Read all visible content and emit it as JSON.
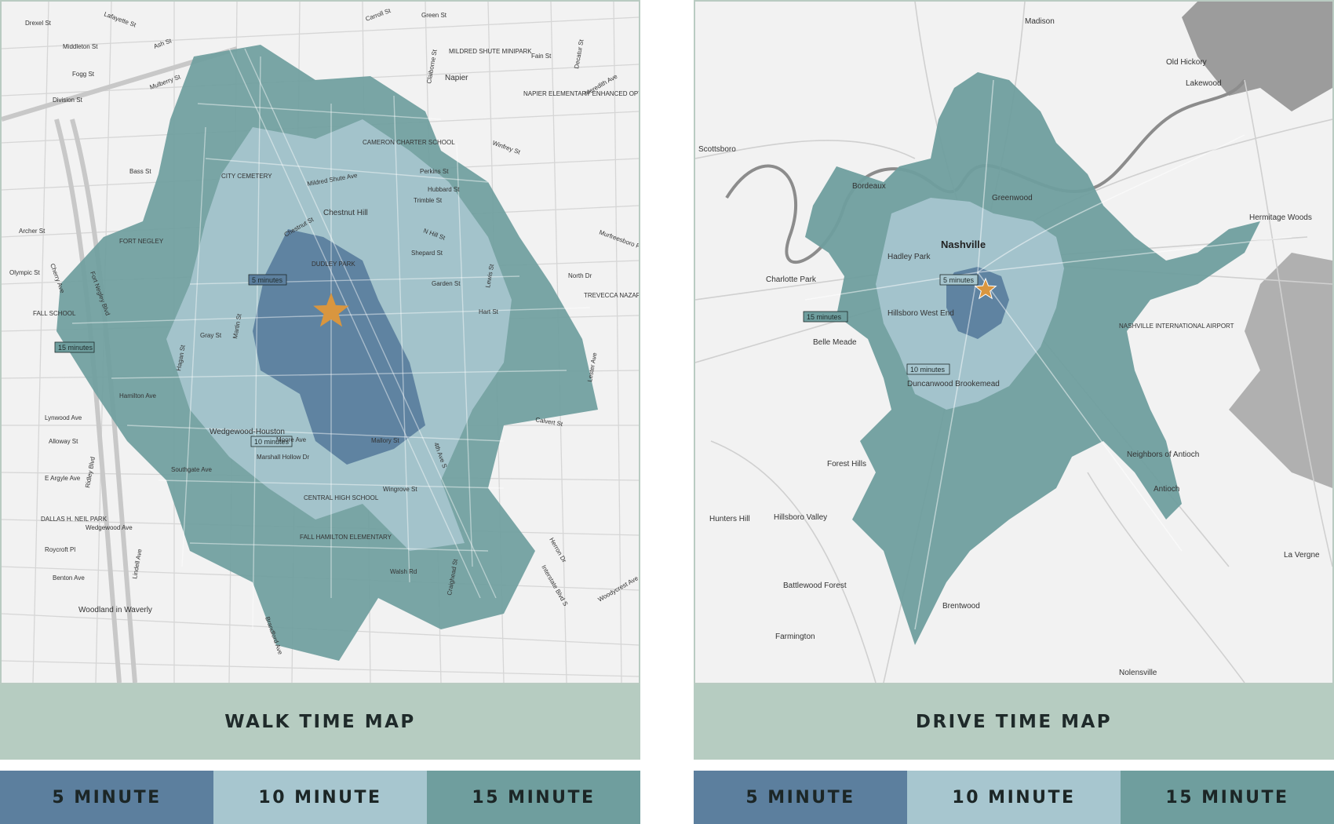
{
  "colors": {
    "zone_5": "#5c7f9e",
    "zone_10": "#a7c6cf",
    "zone_15": "#6f9e9e",
    "title_bar": "#b6ccc1",
    "marker": "#d9963f",
    "map_bg": "#f2f2f2"
  },
  "walk_map": {
    "title": "WALK TIME MAP",
    "legend": [
      "5 MINUTE",
      "10 MINUTE",
      "15 MINUTE"
    ],
    "box_labels": [
      "5 minutes",
      "10 minutes",
      "15 minutes"
    ],
    "labels": [
      "Lafayette St",
      "Drexel St",
      "Middleton St",
      "Ash St",
      "Fogg St",
      "Division St",
      "Mulberry St",
      "Carroll St",
      "Green St",
      "Fain St",
      "Napier",
      "MILDRED SHUTE MINIPARK",
      "NAPIER ELEMENTARY ENHANCED OPTIONS SCHL",
      "Meredith Ave",
      "Winfrey St",
      "CAMERON CHARTER SCHOOL",
      "Perkins St",
      "Hubbard St",
      "Trimble St",
      "CITY CEMETERY",
      "Mildred Shute Ave",
      "Chestnut Hill",
      "Bass St",
      "Archer St",
      "FORT NEGLEY",
      "N Hill St",
      "Shepard St",
      "Garden St",
      "North Dr",
      "TREVECCA NAZARENE UNIVERSITY",
      "Hart St",
      "DUDLEY PARK",
      "Chestnut St",
      "FALL SCHOOL",
      "Gray St",
      "Hamilton Ave",
      "Lynwood Ave",
      "Alloway St",
      "Wedgewood-Houston",
      "Moore Ave",
      "Marshall Hollow Dr",
      "Southgate Ave",
      "E Argyle Ave",
      "DALLAS H. NEIL PARK",
      "Wedgewood Ave",
      "Roycroft Pl",
      "Benton Ave",
      "Woodland in Waverly",
      "CENTRAL HIGH SCHOOL",
      "FALL HAMILTON ELEMENTARY",
      "Wingrove St",
      "Walsh Rd",
      "Mallory St",
      "Calvert St",
      "Woodycrest Ave",
      "Herron Dr",
      "Interstate Blvd S",
      "4th Ave S",
      "Craighead St",
      "Ridley Blvd",
      "Fort Negley Blvd",
      "Martin St",
      "Hagan St",
      "Lewis St",
      "Claiborne St",
      "Decatur St",
      "Lester Ave",
      "Murfreesboro Pike",
      "Cherry Ave",
      "Olympic St",
      "Lindell Ave",
      "Brandford Ave"
    ]
  },
  "drive_map": {
    "title": "DRIVE TIME MAP",
    "legend": [
      "5 MINUTE",
      "10 MINUTE",
      "15 MINUTE"
    ],
    "box_labels": [
      "5 minutes",
      "10 minutes",
      "15 minutes"
    ],
    "labels": [
      "Madison",
      "Old Hickory",
      "Lakewood",
      "Scottsboro",
      "Bordeaux",
      "Greenwood",
      "Hermitage Woods",
      "Nashville",
      "Hadley Park",
      "Charlotte Park",
      "Hillsboro West End",
      "Belle Meade",
      "NASHVILLE INTERNATIONAL AIRPORT",
      "Duncanwood Brookemead",
      "Forest Hills",
      "Neighbors of Antioch",
      "Antioch",
      "Hunters Hill",
      "Hillsboro Valley",
      "La Vergne",
      "Battlewood Forest",
      "Brentwood",
      "Farmington",
      "Nolensville"
    ]
  }
}
